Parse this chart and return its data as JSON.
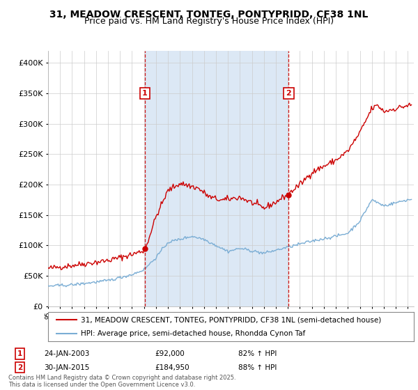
{
  "title": "31, MEADOW CRESCENT, TONTEG, PONTYPRIDD, CF38 1NL",
  "subtitle": "Price paid vs. HM Land Registry's House Price Index (HPI)",
  "ylim": [
    0,
    420000
  ],
  "yticks": [
    0,
    50000,
    100000,
    150000,
    200000,
    250000,
    300000,
    350000,
    400000
  ],
  "xlim_start": 1995.0,
  "xlim_end": 2025.5,
  "background_color": "#ffffff",
  "plot_bg_color": "#ffffff",
  "shade_color": "#dce8f5",
  "grid_color": "#cccccc",
  "line_color_red": "#cc0000",
  "line_color_blue": "#7aadd4",
  "sale1_date": "24-JAN-2003",
  "sale1_price": "£92,000",
  "sale1_pct": "82% ↑ HPI",
  "sale1_year": 2003.07,
  "sale1_value": 92000,
  "sale2_date": "30-JAN-2015",
  "sale2_price": "£184,950",
  "sale2_pct": "88% ↑ HPI",
  "sale2_year": 2015.07,
  "sale2_value": 184950,
  "legend_line1": "31, MEADOW CRESCENT, TONTEG, PONTYPRIDD, CF38 1NL (semi-detached house)",
  "legend_line2": "HPI: Average price, semi-detached house, Rhondda Cynon Taf",
  "footnote": "Contains HM Land Registry data © Crown copyright and database right 2025.\nThis data is licensed under the Open Government Licence v3.0.",
  "title_fontsize": 10,
  "subtitle_fontsize": 9,
  "axis_fontsize": 8,
  "legend_fontsize": 7.5
}
